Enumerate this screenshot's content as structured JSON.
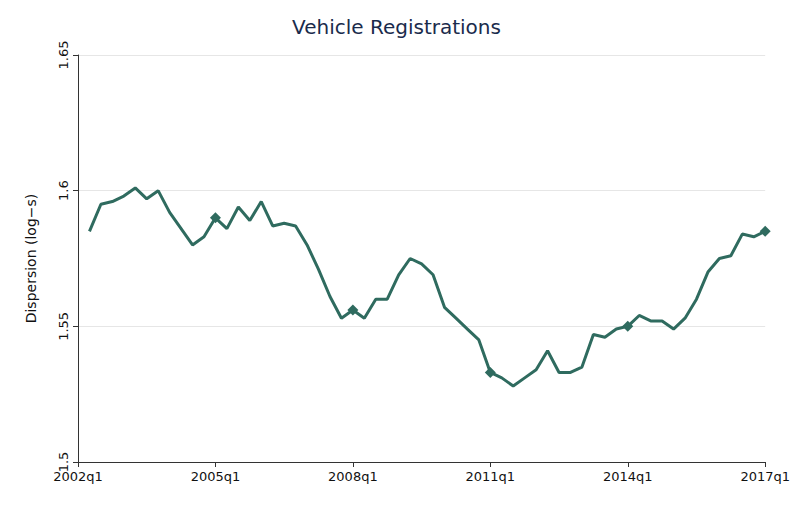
{
  "chart_data": {
    "type": "line",
    "title": "Vehicle Registrations",
    "y_label": "Dispersion (log−s)",
    "categories": [
      "2002q1",
      null,
      null,
      null,
      null,
      null,
      null,
      null,
      null,
      null,
      null,
      null,
      "2005q1",
      null,
      null,
      null,
      null,
      null,
      null,
      null,
      null,
      null,
      null,
      null,
      "2008q1",
      null,
      null,
      null,
      null,
      null,
      null,
      null,
      null,
      null,
      null,
      null,
      "2011q1",
      null,
      null,
      null,
      null,
      null,
      null,
      null,
      null,
      null,
      null,
      null,
      "2014q1",
      null,
      null,
      null,
      null,
      null,
      null,
      null,
      null,
      null,
      null,
      null,
      "2017q1"
    ],
    "values": [
      null,
      1.585,
      1.595,
      1.596,
      1.598,
      1.601,
      1.597,
      1.6,
      1.592,
      1.586,
      1.58,
      1.583,
      1.59,
      1.586,
      1.594,
      1.589,
      1.596,
      1.587,
      1.588,
      1.587,
      1.58,
      1.571,
      1.561,
      1.553,
      1.556,
      1.553,
      1.56,
      1.56,
      1.569,
      1.575,
      1.573,
      1.569,
      1.557,
      1.553,
      1.549,
      1.545,
      1.533,
      1.531,
      1.528,
      1.531,
      1.534,
      1.541,
      1.533,
      1.533,
      1.535,
      1.547,
      1.546,
      1.549,
      1.55,
      1.554,
      1.552,
      1.552,
      1.549,
      1.553,
      1.56,
      1.57,
      1.575,
      1.576,
      1.584,
      1.583,
      1.585
    ],
    "color": "#2f6b5f",
    "marker": "diamond",
    "line_style": "solid",
    "ylim": [
      1.5,
      1.65
    ],
    "yticks": [
      1.5,
      1.55,
      1.6,
      1.65
    ],
    "grid": true
  }
}
